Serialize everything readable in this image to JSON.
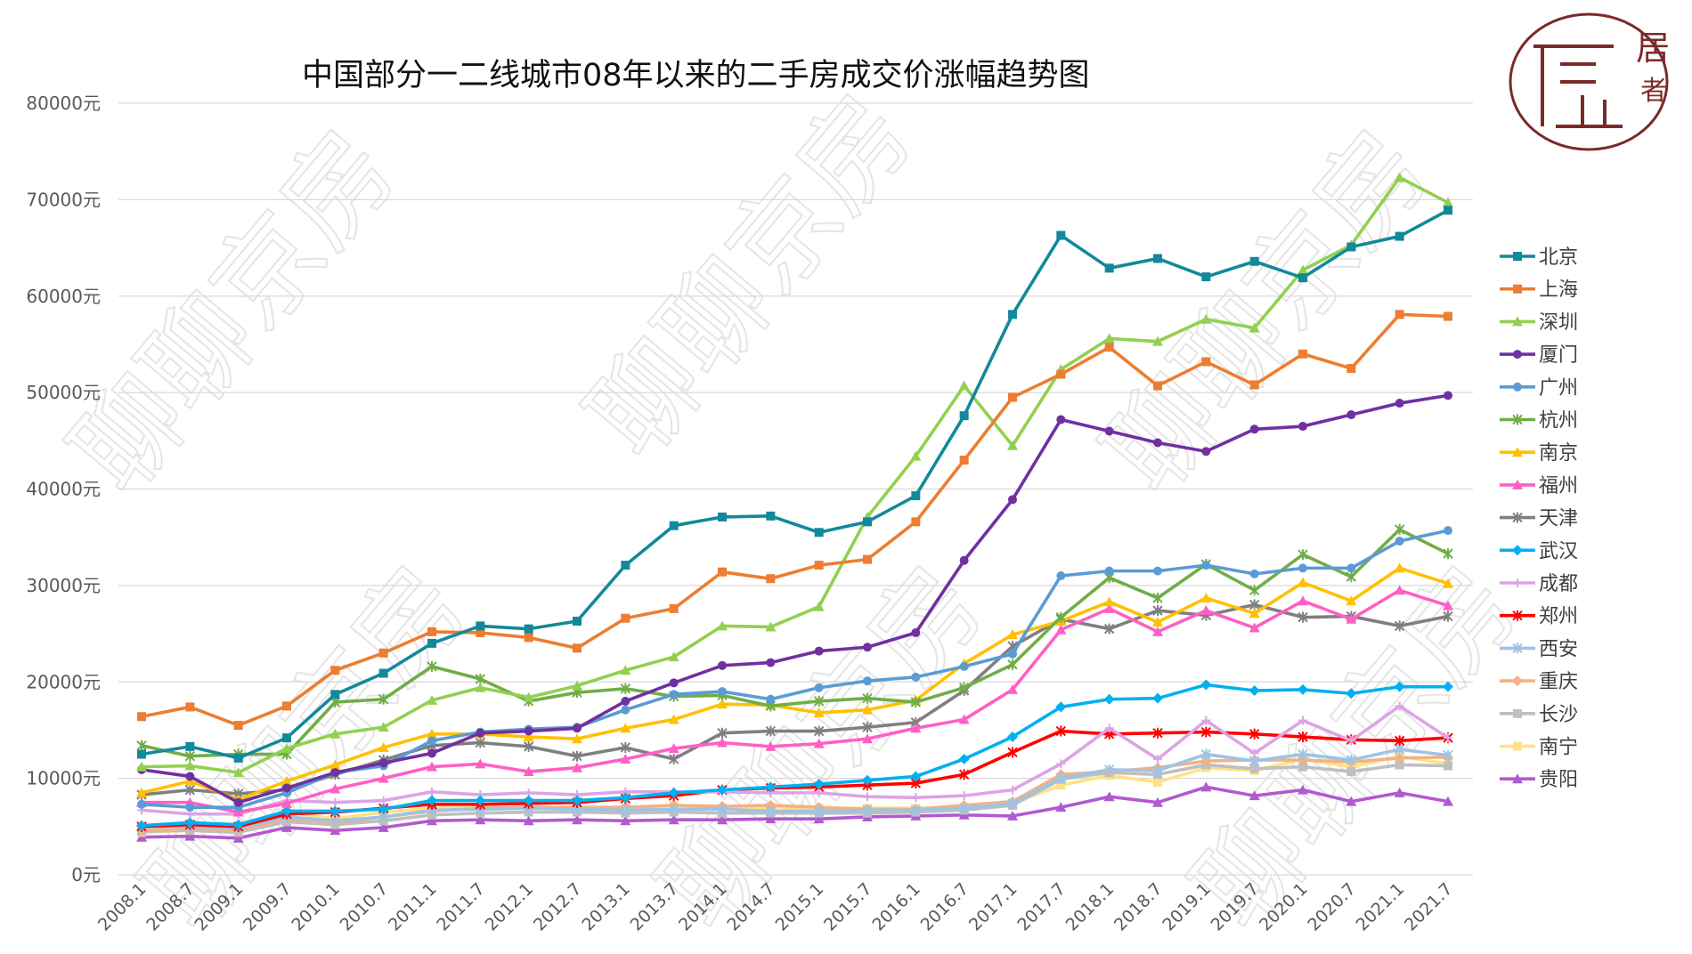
{
  "chart_data": {
    "type": "line",
    "title": "中国部分一二线城市08年以来的二手房成交价涨幅趋势图",
    "xlabel": "",
    "ylabel": "",
    "ylim": [
      0,
      80000
    ],
    "yticks": [
      "0元",
      "10000元",
      "20000元",
      "30000元",
      "40000元",
      "50000元",
      "60000元",
      "70000元",
      "80000元"
    ],
    "grid": "horizontal",
    "legend": "right",
    "categories": [
      "2008.1",
      "2008.7",
      "2009.1",
      "2009.7",
      "2010.1",
      "2010.7",
      "2011.1",
      "2011.7",
      "2012.1",
      "2012.7",
      "2013.1",
      "2013.7",
      "2014.1",
      "2014.7",
      "2015.1",
      "2015.7",
      "2016.1",
      "2016.7",
      "2017.1",
      "2017.7",
      "2018.1",
      "2018.7",
      "2019.1",
      "2019.7",
      "2020.1",
      "2020.7",
      "2021.1",
      "2021.7"
    ],
    "series": [
      {
        "name": "北京",
        "color": "#12899a",
        "marker": "square",
        "values": [
          12500,
          13300,
          12100,
          14200,
          18700,
          20900,
          24000,
          25800,
          25500,
          26300,
          32100,
          36200,
          37100,
          37200,
          35500,
          36600,
          39300,
          47600,
          58100,
          66300,
          62900,
          63900,
          62000,
          63600,
          61900,
          65100,
          66200,
          68900
        ]
      },
      {
        "name": "上海",
        "color": "#ed7d31",
        "marker": "square",
        "values": [
          16400,
          17400,
          15500,
          17500,
          21200,
          23000,
          25200,
          25100,
          24600,
          23500,
          26600,
          27600,
          31400,
          30700,
          32100,
          32700,
          36600,
          43000,
          49500,
          51900,
          54700,
          50700,
          53200,
          50800,
          54000,
          52500,
          58100,
          57900
        ]
      },
      {
        "name": "深圳",
        "color": "#92d050",
        "marker": "triangle",
        "values": [
          11200,
          11300,
          10600,
          13100,
          14600,
          15300,
          18100,
          19400,
          18400,
          19600,
          21200,
          22600,
          25800,
          25700,
          27800,
          37100,
          43400,
          50700,
          44500,
          52400,
          55600,
          55300,
          57600,
          56700,
          62700,
          65300,
          72300,
          69700
        ]
      },
      {
        "name": "厦门",
        "color": "#7030a0",
        "marker": "circle",
        "values": [
          10900,
          10200,
          7500,
          9000,
          10600,
          11600,
          12600,
          14700,
          14900,
          15200,
          18000,
          19900,
          21700,
          22000,
          23200,
          23600,
          25100,
          32600,
          38900,
          47200,
          46000,
          44800,
          43900,
          46200,
          46500,
          47700,
          48900,
          49700
        ]
      },
      {
        "name": "广州",
        "color": "#5b9bd5",
        "marker": "circle",
        "values": [
          7300,
          7000,
          7000,
          8500,
          10600,
          11300,
          13900,
          14800,
          15100,
          15300,
          17100,
          18700,
          19000,
          18200,
          19400,
          20100,
          20500,
          21600,
          22900,
          31000,
          31500,
          31500,
          32100,
          31200,
          31800,
          31800,
          34600,
          35700
        ]
      },
      {
        "name": "杭州",
        "color": "#70ad47",
        "marker": "x",
        "values": [
          13400,
          12300,
          12500,
          12500,
          17900,
          18200,
          21600,
          20300,
          18000,
          18900,
          19300,
          18500,
          18600,
          17500,
          18000,
          18300,
          17900,
          19400,
          21800,
          26700,
          30800,
          28700,
          32200,
          29500,
          33200,
          30900,
          35800,
          33300
        ]
      },
      {
        "name": "南京",
        "color": "#ffc000",
        "marker": "triangle",
        "values": [
          8500,
          9700,
          7800,
          9700,
          11400,
          13200,
          14600,
          14600,
          14300,
          14100,
          15200,
          16100,
          17700,
          17600,
          16800,
          17100,
          18100,
          21900,
          24900,
          26300,
          28300,
          26200,
          28700,
          27100,
          30300,
          28400,
          31800,
          30200
        ]
      },
      {
        "name": "福州",
        "color": "#ff5fc4",
        "marker": "triangle",
        "values": [
          7500,
          7500,
          6500,
          7400,
          8900,
          10000,
          11200,
          11500,
          10700,
          11100,
          12000,
          13100,
          13700,
          13300,
          13600,
          14100,
          15200,
          16100,
          19200,
          25400,
          27600,
          25200,
          27400,
          25600,
          28400,
          26500,
          29500,
          27900
        ]
      },
      {
        "name": "天津",
        "color": "#7f7f7f",
        "marker": "x",
        "values": [
          8300,
          8800,
          8400,
          8800,
          10400,
          11900,
          13400,
          13700,
          13300,
          12300,
          13200,
          12000,
          14700,
          14900,
          14900,
          15300,
          15800,
          19100,
          23700,
          26500,
          25500,
          27400,
          26900,
          28000,
          26700,
          26800,
          25800,
          26800
        ]
      },
      {
        "name": "武汉",
        "color": "#00b0f0",
        "marker": "diamond",
        "values": [
          5100,
          5400,
          5200,
          6600,
          6600,
          6800,
          7700,
          7700,
          7700,
          7700,
          8000,
          8500,
          8800,
          9100,
          9400,
          9800,
          10200,
          12000,
          14300,
          17400,
          18200,
          18300,
          19700,
          19100,
          19200,
          18800,
          19500,
          19500
        ]
      },
      {
        "name": "成都",
        "color": "#dca4e6",
        "marker": "plus",
        "values": [
          6700,
          6300,
          6300,
          7700,
          7500,
          7700,
          8600,
          8300,
          8500,
          8300,
          8600,
          8600,
          8600,
          8500,
          8500,
          8100,
          8000,
          8200,
          8800,
          11500,
          15200,
          12000,
          16000,
          12600,
          16000,
          13900,
          17500,
          14200
        ]
      },
      {
        "name": "郑州",
        "color": "#ff0000",
        "marker": "x",
        "values": [
          5000,
          5200,
          5000,
          6300,
          6500,
          6900,
          7300,
          7300,
          7400,
          7500,
          7900,
          8200,
          8800,
          9000,
          9100,
          9300,
          9500,
          10400,
          12700,
          14900,
          14600,
          14700,
          14800,
          14600,
          14300,
          14000,
          13900,
          14200
        ]
      },
      {
        "name": "西安",
        "color": "#9dc3e6",
        "marker": "x",
        "values": [
          5000,
          5000,
          4800,
          6000,
          5600,
          6000,
          6700,
          6800,
          6900,
          6800,
          6700,
          6800,
          6800,
          6600,
          6600,
          6700,
          6700,
          6900,
          7400,
          10000,
          10900,
          10800,
          12500,
          11800,
          12500,
          11900,
          13000,
          12400
        ]
      },
      {
        "name": "重庆",
        "color": "#f4b183",
        "marker": "diamond",
        "values": [
          4600,
          4800,
          4600,
          5800,
          5400,
          6000,
          6600,
          6900,
          7000,
          7000,
          7000,
          7200,
          7100,
          7200,
          7000,
          6800,
          6800,
          7200,
          7600,
          10400,
          10700,
          11100,
          11800,
          11900,
          11900,
          11700,
          12100,
          12200
        ]
      },
      {
        "name": "长沙",
        "color": "#bfbfbf",
        "marker": "square",
        "values": [
          4500,
          4600,
          4400,
          5500,
          5200,
          5600,
          6200,
          6400,
          6500,
          6500,
          6400,
          6500,
          6400,
          6400,
          6400,
          6400,
          6500,
          6700,
          7200,
          9900,
          10600,
          10400,
          11400,
          11000,
          11200,
          10700,
          11400,
          11300
        ]
      },
      {
        "name": "南宁",
        "color": "#ffe285",
        "marker": "square",
        "values": [
          4400,
          4600,
          4400,
          6500,
          5800,
          6500,
          6900,
          7000,
          6900,
          6900,
          6900,
          7200,
          6900,
          7000,
          6900,
          6900,
          6900,
          7000,
          7400,
          9300,
          10300,
          9600,
          11100,
          10800,
          12000,
          11200,
          12300,
          11500
        ]
      },
      {
        "name": "贵阳",
        "color": "#b05ad0",
        "marker": "triangle",
        "values": [
          3900,
          4000,
          3800,
          4900,
          4600,
          4900,
          5600,
          5700,
          5600,
          5700,
          5600,
          5700,
          5700,
          5800,
          5800,
          6000,
          6100,
          6200,
          6100,
          7000,
          8100,
          7500,
          9100,
          8200,
          8800,
          7600,
          8500,
          7600
        ]
      }
    ]
  },
  "logo": {
    "text": "居者",
    "color": "#7b2a2a"
  },
  "watermark": "聊聊京房"
}
